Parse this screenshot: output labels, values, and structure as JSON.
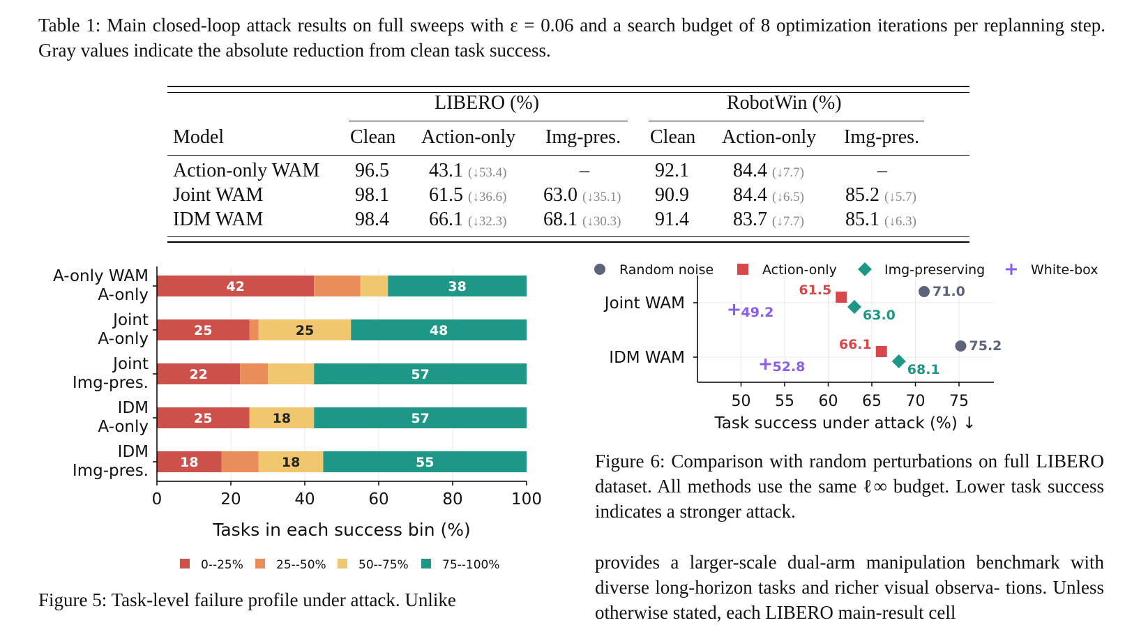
{
  "table_caption": "Table 1: Main closed-loop attack results on full sweeps with ε = 0.06 and a search budget of 8 optimization iterations per replanning step. Gray values indicate the absolute reduction from clean task success.",
  "table": {
    "group_headers": [
      "LIBERO (%)",
      "RobotWin (%)"
    ],
    "columns": [
      "Model",
      "Clean",
      "Action-only",
      "Img-pres.",
      "Clean",
      "Action-only",
      "Img-pres."
    ],
    "rows": [
      {
        "model": "Action-only WAM",
        "l_clean": "96.5",
        "l_act": "43.1",
        "l_act_red": "(↓53.4)",
        "l_img": "–",
        "l_img_red": "",
        "r_clean": "92.1",
        "r_act": "84.4",
        "r_act_red": "(↓7.7)",
        "r_img": "–",
        "r_img_red": ""
      },
      {
        "model": "Joint WAM",
        "l_clean": "98.1",
        "l_act": "61.5",
        "l_act_red": "(↓36.6)",
        "l_img": "63.0",
        "l_img_red": "(↓35.1)",
        "r_clean": "90.9",
        "r_act": "84.4",
        "r_act_red": "(↓6.5)",
        "r_img": "85.2",
        "r_img_red": "(↓5.7)"
      },
      {
        "model": "IDM WAM",
        "l_clean": "98.4",
        "l_act": "66.1",
        "l_act_red": "(↓32.3)",
        "l_img": "68.1",
        "l_img_red": "(↓30.3)",
        "r_clean": "91.4",
        "r_act": "83.7",
        "r_act_red": "(↓7.7)",
        "r_img": "85.1",
        "r_img_red": "(↓6.3)"
      }
    ]
  },
  "fig5": {
    "caption": "Figure 5: Task-level failure profile under attack. Unlike",
    "colors": {
      "bin0": "#cc514a",
      "bin1": "#e98d5a",
      "bin2": "#f0c66e",
      "bin3": "#1f9787"
    }
  },
  "fig6": {
    "caption": "Figure 6: Comparison with random perturbations on full LIBERO dataset. All methods use the same ℓ∞ budget. Lower task success indicates a stronger attack.",
    "colors": {
      "random": "#5b6478",
      "action": "#d8484a",
      "img": "#1f9787",
      "white": "#8a5cf0"
    }
  },
  "body_text": "provides a larger-scale dual-arm manipulation benchmark with diverse long-horizon tasks and richer visual observa- tions. Unless otherwise stated, each LIBERO main-result cell",
  "chart_data": [
    {
      "type": "bar",
      "orientation": "horizontal-stacked",
      "categories": [
        "A-only WAM\nA-only",
        "Joint\nA-only",
        "Joint\nImg-pres.",
        "IDM\nA-only",
        "IDM\nImg-pres."
      ],
      "series": [
        {
          "name": "0--25%",
          "values": [
            42.5,
            25,
            22.5,
            25,
            17.5
          ],
          "labels": [
            "42",
            "25",
            "22",
            "25",
            "18"
          ]
        },
        {
          "name": "25--50%",
          "values": [
            12.5,
            2.5,
            7.5,
            0,
            10
          ],
          "labels": [
            "",
            "",
            "",
            "",
            ""
          ]
        },
        {
          "name": "50--75%",
          "values": [
            7.5,
            25,
            12.5,
            17.5,
            17.5
          ],
          "labels": [
            "",
            "25",
            "",
            "18",
            "18"
          ]
        },
        {
          "name": "75--100%",
          "values": [
            37.5,
            47.5,
            57.5,
            57.5,
            55
          ],
          "labels": [
            "38",
            "48",
            "57",
            "57",
            "55"
          ]
        }
      ],
      "xlabel": "Tasks in each success bin (%)",
      "xlim": [
        0,
        100
      ],
      "xticks": [
        "0",
        "20",
        "40",
        "60",
        "80",
        "100"
      ],
      "legend": "bottom",
      "grid": true
    },
    {
      "type": "scatter",
      "categories": [
        "Joint WAM",
        "IDM WAM"
      ],
      "series": [
        {
          "name": "Random noise",
          "values": [
            71.0,
            75.2
          ]
        },
        {
          "name": "Action-only",
          "values": [
            61.5,
            66.1
          ]
        },
        {
          "name": "Img-preserving",
          "values": [
            63.0,
            68.1
          ]
        },
        {
          "name": "White-box",
          "values": [
            49.2,
            52.8
          ]
        }
      ],
      "xlabel": "Task success under attack (%) ↓",
      "xlim": [
        45,
        79
      ],
      "xticks": [
        "50",
        "55",
        "60",
        "65",
        "70",
        "75"
      ],
      "legend": "top",
      "grid": true
    }
  ]
}
